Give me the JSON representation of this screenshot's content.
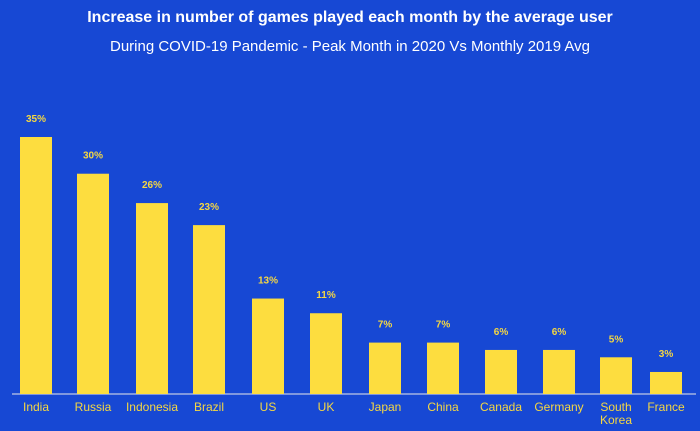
{
  "title": "Increase in number of games played each month by the average user",
  "subtitle": "During COVID-19 Pandemic - Peak Month in 2020 Vs Monthly 2019 Avg",
  "chart_data": {
    "type": "bar",
    "categories": [
      "India",
      "Russia",
      "Indonesia",
      "Brazil",
      "US",
      "UK",
      "Japan",
      "China",
      "Canada",
      "Germany",
      "South Korea",
      "France"
    ],
    "values": [
      35,
      30,
      26,
      23,
      13,
      11,
      7,
      7,
      6,
      6,
      5,
      3
    ],
    "value_labels": [
      "35%",
      "30%",
      "26%",
      "23%",
      "13%",
      "11%",
      "7%",
      "7%",
      "6%",
      "6%",
      "5%",
      "3%"
    ],
    "ylim": [
      0,
      35
    ],
    "grid": false,
    "legend": "none",
    "colors": {
      "background": "#1748d4",
      "bar": "#fddd3f",
      "label": "#f5d742",
      "axis": "#e8e8e8",
      "title": "#ffffff"
    }
  }
}
